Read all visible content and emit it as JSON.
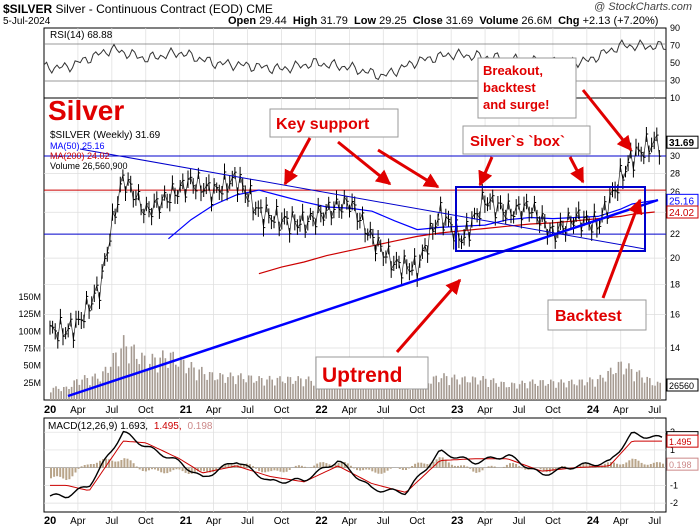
{
  "header": {
    "ticker": "$SILVER",
    "name": "Silver - Continuous Contract (EOD)",
    "exchange": "CME",
    "date": "5-Jul-2024",
    "open_label": "Open",
    "open": "29.44",
    "high_label": "High",
    "high": "31.79",
    "low_label": "Low",
    "low": "29.25",
    "close_label": "Close",
    "close": "31.69",
    "volume_label": "Volume",
    "volume": "26.6M",
    "chg_label": "Chg",
    "chg": "+2.13 (+7.20%)",
    "credit": "@ StockCharts.com"
  },
  "chart_data": [
    {
      "type": "line",
      "panel": "RSI",
      "legend": "RSI(14) 68.88",
      "ylim": [
        10,
        90
      ],
      "y_ticks": [
        "90",
        "70",
        "50",
        "30",
        "10"
      ],
      "bands": [
        70,
        30
      ],
      "x": [
        "2020-03",
        "2020-07",
        "2020-10",
        "2021-01",
        "2021-04",
        "2021-07",
        "2021-10",
        "2022-01",
        "2022-04",
        "2022-07",
        "2022-10",
        "2023-01",
        "2023-04",
        "2023-07",
        "2023-10",
        "2024-01",
        "2024-04",
        "2024-07"
      ],
      "values": [
        45,
        66,
        55,
        62,
        50,
        47,
        43,
        50,
        45,
        35,
        52,
        60,
        57,
        53,
        52,
        52,
        70,
        69
      ]
    },
    {
      "type": "line",
      "panel": "Price (weekly)",
      "big_label": "Silver",
      "legend": [
        "$SILVER (Weekly) 31.69",
        "MA(50) 25.16",
        "MA(200) 24.02",
        "Volume 26,560,900"
      ],
      "legend_colors": [
        "#000000",
        "#0000ff",
        "#cc0000",
        "#000000"
      ],
      "ylim": [
        13,
        34
      ],
      "y_ticks": [
        "30",
        "28",
        "26",
        "24",
        "22",
        "20",
        "18",
        "16",
        "14"
      ],
      "price_badges": [
        "31.69",
        "25.16",
        "24.02"
      ],
      "volume_ticks": [
        "150M",
        "125M",
        "100M",
        "75M",
        "50M",
        "25M"
      ],
      "volume_badge": "26560",
      "x": [
        "2020-03",
        "2020-04",
        "2020-06",
        "2020-08",
        "2020-10",
        "2020-12",
        "2021-02",
        "2021-04",
        "2021-06",
        "2021-08",
        "2021-10",
        "2021-12",
        "2022-02",
        "2022-04",
        "2022-06",
        "2022-08",
        "2022-10",
        "2022-12",
        "2023-02",
        "2023-04",
        "2023-06",
        "2023-08",
        "2023-10",
        "2023-12",
        "2024-02",
        "2024-04",
        "2024-05",
        "2024-07"
      ],
      "series": [
        {
          "name": "$SILVER",
          "values": [
            15.0,
            15.4,
            17.9,
            27.5,
            24.0,
            25.5,
            27.1,
            26.0,
            27.5,
            24.0,
            23.2,
            23.0,
            24.1,
            25.0,
            21.6,
            19.5,
            19.2,
            23.9,
            21.5,
            25.2,
            24.0,
            24.5,
            22.0,
            23.5,
            22.8,
            27.5,
            29.9,
            31.69
          ]
        },
        {
          "name": "MA(50)",
          "values": [
            null,
            null,
            null,
            null,
            null,
            21.6,
            23.3,
            24.7,
            25.7,
            26.2,
            25.6,
            25.0,
            24.5,
            24.4,
            24.1,
            23.2,
            22.4,
            22.6,
            22.7,
            22.8,
            23.3,
            23.5,
            23.4,
            23.5,
            23.6,
            24.3,
            24.8,
            25.16
          ]
        },
        {
          "name": "MA(200)",
          "values": [
            null,
            null,
            null,
            null,
            null,
            null,
            null,
            null,
            null,
            18.8,
            19.3,
            19.7,
            20.2,
            20.6,
            21.0,
            21.4,
            21.8,
            22.1,
            22.3,
            22.5,
            22.7,
            22.9,
            23.0,
            23.2,
            23.4,
            23.6,
            23.8,
            24.02
          ]
        }
      ],
      "volume": [
        20,
        35,
        40,
        95,
        65,
        75,
        55,
        40,
        40,
        35,
        35,
        35,
        30,
        40,
        30,
        25,
        25,
        40,
        35,
        35,
        25,
        30,
        30,
        30,
        35,
        60,
        50,
        27
      ],
      "horizontal_lines": [
        {
          "y": 26.2,
          "color": "#cc0000"
        },
        {
          "y": 30.0,
          "color": "#0000cc"
        },
        {
          "y": 22.0,
          "color": "#0000cc"
        }
      ],
      "annotations": [
        "Key support",
        "Silver`s `box`",
        "Breakout, backtest and surge!",
        "Uptrend",
        "Backtest"
      ]
    },
    {
      "type": "line",
      "panel": "MACD",
      "legend": [
        "MACD(12,26,9) 1.693,",
        "1.495,",
        "0.198"
      ],
      "legend_colors": [
        "#000000",
        "#cc0000",
        "#cc8888"
      ],
      "ylim": [
        -2.5,
        2.8
      ],
      "y_ticks": [
        "2",
        "1",
        "0",
        "-1",
        "-2"
      ],
      "badges": [
        "1.693",
        "1.495",
        "0.198"
      ],
      "x": [
        "2020-03",
        "2020-05",
        "2020-08",
        "2020-10",
        "2021-01",
        "2021-03",
        "2021-06",
        "2021-09",
        "2021-12",
        "2022-03",
        "2022-06",
        "2022-09",
        "2022-12",
        "2023-03",
        "2023-06",
        "2023-09",
        "2023-12",
        "2024-03",
        "2024-05",
        "2024-07"
      ],
      "series": [
        {
          "name": "MACD",
          "values": [
            -1.6,
            -1.0,
            2.0,
            1.2,
            0.3,
            -0.6,
            0.4,
            -0.8,
            -0.7,
            0.4,
            -1.2,
            -1.4,
            0.9,
            0.3,
            0.7,
            -0.4,
            0.1,
            0.3,
            1.9,
            1.693
          ]
        },
        {
          "name": "Signal",
          "values": [
            -1.0,
            -1.3,
            1.5,
            1.4,
            0.5,
            -0.3,
            0.1,
            -0.5,
            -0.8,
            0.1,
            -0.9,
            -1.4,
            0.4,
            0.5,
            0.5,
            -0.2,
            0.0,
            0.1,
            1.5,
            1.495
          ]
        }
      ]
    }
  ],
  "x_axis": {
    "labels": [
      "20",
      "Apr",
      "Jul",
      "Oct",
      "21",
      "Apr",
      "Jul",
      "Oct",
      "22",
      "Apr",
      "Jul",
      "Oct",
      "23",
      "Apr",
      "Jul",
      "Oct",
      "24",
      "Apr",
      "Jul"
    ]
  },
  "colors": {
    "price": "#000000",
    "ma50": "#0000ff",
    "ma200": "#cc0000",
    "volume": "#a59a91",
    "annotation": "#e00000",
    "box": "#0000cc",
    "rsi": "#333333"
  }
}
